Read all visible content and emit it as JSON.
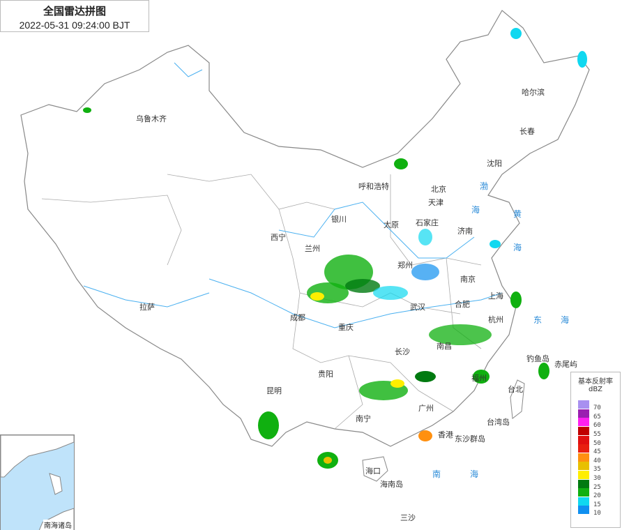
{
  "header": {
    "title": "全国雷达拼图",
    "timestamp": "2022-05-31 09:24:00 BJT"
  },
  "legend": {
    "title": "基本反射率",
    "unit": "dBZ",
    "items": [
      {
        "label": "70",
        "color": "#a890f0"
      },
      {
        "label": "65",
        "color": "#9a20b0"
      },
      {
        "label": "60",
        "color": "#ff20f0"
      },
      {
        "label": "55",
        "color": "#c00000"
      },
      {
        "label": "50",
        "color": "#e01010"
      },
      {
        "label": "45",
        "color": "#e82010"
      },
      {
        "label": "40",
        "color": "#ff9010"
      },
      {
        "label": "35",
        "color": "#e8c000"
      },
      {
        "label": "30",
        "color": "#ffee00"
      },
      {
        "label": "25",
        "color": "#007a10"
      },
      {
        "label": "20",
        "color": "#10b010"
      },
      {
        "label": "15",
        "color": "#10d8f0"
      },
      {
        "label": "10",
        "color": "#1090f0"
      }
    ]
  },
  "cities": [
    "乌鲁木齐",
    "哈尔滨",
    "长春",
    "沈阳",
    "呼和浩特",
    "北京",
    "天津",
    "银川",
    "太原",
    "石家庄",
    "济南",
    "西宁",
    "兰州",
    "郑州",
    "南京",
    "合肥",
    "上海",
    "武汉",
    "杭州",
    "成都",
    "重庆",
    "拉萨",
    "长沙",
    "南昌",
    "福州",
    "贵阳",
    "昆明",
    "广州",
    "南宁",
    "香港",
    "台北",
    "台湾岛",
    "东沙群岛",
    "海口",
    "海南岛",
    "钓鱼岛",
    "赤尾屿",
    "三沙"
  ],
  "seas": [
    "渤",
    "海",
    "黄",
    "海",
    "东",
    "海",
    "南",
    "海"
  ],
  "inset": {
    "label": "南海诸岛"
  }
}
